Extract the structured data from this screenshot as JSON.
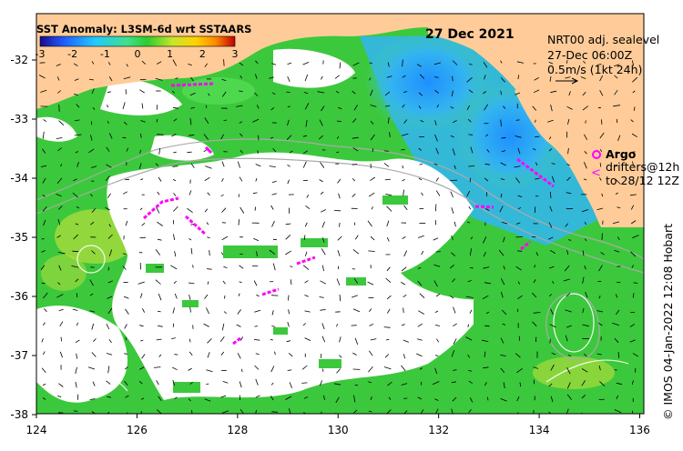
{
  "map": {
    "title": "SST Anomaly: L3SM-6d wrt SSTAARS",
    "date": "27 Dec 2021",
    "colorbar": {
      "ticks": [
        "-3",
        "-2",
        "-1",
        "0",
        "1",
        "2",
        "3"
      ],
      "range": [
        -3,
        3
      ],
      "colors": [
        "#1a0a8c",
        "#1f5cff",
        "#22c8ff",
        "#3fe08a",
        "#2ecc2e",
        "#c8e62a",
        "#ffd200",
        "#ff8a00",
        "#c00000"
      ]
    },
    "current_legend": {
      "line1": "NRT00 adj. sealevel",
      "line2": "27-Dec 06:00Z",
      "line3": "0.5m/s (1kt 24h)"
    },
    "argo_legend": {
      "label": "Argo",
      "line1": "drifters@12h",
      "line2": "to 28/12 12Z"
    },
    "credit": "© IMOS 04-Jan-2022 12:08 Hobart",
    "x_ticks": [
      "124",
      "126",
      "128",
      "130",
      "132",
      "134",
      "136"
    ],
    "y_ticks": [
      "-32",
      "-33",
      "-34",
      "-35",
      "-36",
      "-37",
      "-38"
    ],
    "colors": {
      "land": "#ffcc99",
      "no_data": "#ffffff",
      "anomaly_green": "#3cc83c",
      "anomaly_cool": "#2fa8e8",
      "drifter": "#ff00ff"
    }
  }
}
